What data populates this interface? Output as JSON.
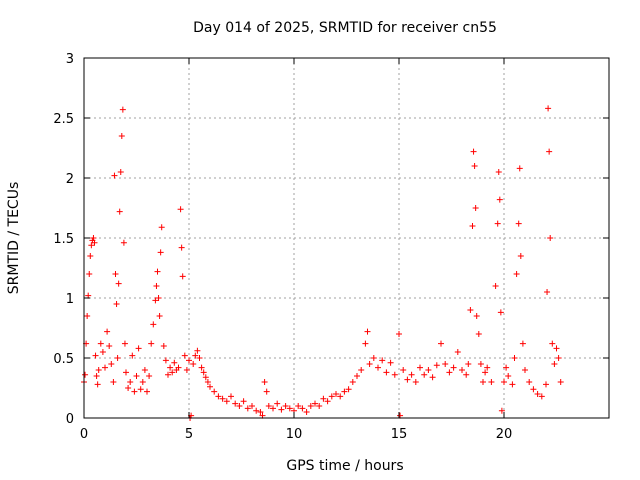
{
  "chart_data": {
    "type": "scatter",
    "title": "Day 014 of 2025, SRMTID for receiver cn55",
    "xlabel": "GPS time / hours",
    "ylabel": "SRMTID / TECUs",
    "xlim": [
      0,
      25
    ],
    "ylim": [
      0,
      3
    ],
    "xticks": [
      0,
      5,
      10,
      15,
      20
    ],
    "yticks": [
      0,
      0.5,
      1,
      1.5,
      2,
      2.5,
      3
    ],
    "xtick_labels": [
      "0",
      "5",
      "10",
      "15",
      "20"
    ],
    "ytick_labels": [
      "0",
      "0.5",
      "1",
      "1.5",
      "2",
      "2.5",
      "3"
    ],
    "grid": true,
    "marker": "plus",
    "color": "#ff0000",
    "series": [
      {
        "name": "SRMTID",
        "points": [
          [
            0.0,
            0.3
          ],
          [
            0.05,
            0.36
          ],
          [
            0.1,
            0.62
          ],
          [
            0.15,
            0.85
          ],
          [
            0.2,
            1.02
          ],
          [
            0.25,
            1.2
          ],
          [
            0.3,
            1.35
          ],
          [
            0.35,
            1.44
          ],
          [
            0.4,
            1.48
          ],
          [
            0.45,
            1.5
          ],
          [
            0.5,
            1.46
          ],
          [
            0.55,
            0.52
          ],
          [
            0.6,
            0.35
          ],
          [
            0.65,
            0.28
          ],
          [
            0.7,
            0.4
          ],
          [
            0.8,
            0.62
          ],
          [
            0.9,
            0.55
          ],
          [
            1.0,
            0.42
          ],
          [
            1.1,
            0.72
          ],
          [
            1.2,
            0.6
          ],
          [
            1.3,
            0.45
          ],
          [
            1.4,
            0.3
          ],
          [
            1.45,
            2.02
          ],
          [
            1.5,
            1.2
          ],
          [
            1.55,
            0.95
          ],
          [
            1.6,
            0.5
          ],
          [
            1.65,
            1.12
          ],
          [
            1.7,
            1.72
          ],
          [
            1.75,
            2.05
          ],
          [
            1.8,
            2.35
          ],
          [
            1.85,
            2.57
          ],
          [
            1.9,
            1.46
          ],
          [
            1.95,
            0.62
          ],
          [
            2.0,
            0.38
          ],
          [
            2.1,
            0.25
          ],
          [
            2.2,
            0.3
          ],
          [
            2.3,
            0.52
          ],
          [
            2.4,
            0.22
          ],
          [
            2.5,
            0.35
          ],
          [
            2.6,
            0.58
          ],
          [
            2.7,
            0.24
          ],
          [
            2.8,
            0.3
          ],
          [
            2.9,
            0.4
          ],
          [
            3.0,
            0.22
          ],
          [
            3.1,
            0.35
          ],
          [
            3.2,
            0.62
          ],
          [
            3.3,
            0.78
          ],
          [
            3.4,
            0.98
          ],
          [
            3.45,
            1.1
          ],
          [
            3.5,
            1.22
          ],
          [
            3.55,
            1.0
          ],
          [
            3.6,
            0.85
          ],
          [
            3.65,
            1.38
          ],
          [
            3.7,
            1.59
          ],
          [
            3.8,
            0.6
          ],
          [
            3.9,
            0.48
          ],
          [
            4.0,
            0.36
          ],
          [
            4.1,
            0.42
          ],
          [
            4.2,
            0.38
          ],
          [
            4.3,
            0.46
          ],
          [
            4.4,
            0.4
          ],
          [
            4.5,
            0.42
          ],
          [
            4.6,
            1.74
          ],
          [
            4.65,
            1.42
          ],
          [
            4.7,
            1.18
          ],
          [
            4.8,
            0.52
          ],
          [
            4.9,
            0.4
          ],
          [
            5.0,
            0.48
          ],
          [
            5.05,
            0.0
          ],
          [
            5.1,
            0.02
          ],
          [
            5.2,
            0.45
          ],
          [
            5.3,
            0.52
          ],
          [
            5.4,
            0.56
          ],
          [
            5.5,
            0.5
          ],
          [
            5.6,
            0.42
          ],
          [
            5.7,
            0.38
          ],
          [
            5.8,
            0.34
          ],
          [
            5.9,
            0.3
          ],
          [
            6.0,
            0.26
          ],
          [
            6.2,
            0.22
          ],
          [
            6.4,
            0.18
          ],
          [
            6.6,
            0.16
          ],
          [
            6.8,
            0.14
          ],
          [
            7.0,
            0.18
          ],
          [
            7.2,
            0.12
          ],
          [
            7.4,
            0.1
          ],
          [
            7.6,
            0.14
          ],
          [
            7.8,
            0.08
          ],
          [
            8.0,
            0.1
          ],
          [
            8.2,
            0.06
          ],
          [
            8.4,
            0.05
          ],
          [
            8.5,
            0.02
          ],
          [
            8.6,
            0.3
          ],
          [
            8.7,
            0.22
          ],
          [
            8.8,
            0.1
          ],
          [
            9.0,
            0.08
          ],
          [
            9.2,
            0.12
          ],
          [
            9.4,
            0.07
          ],
          [
            9.6,
            0.1
          ],
          [
            9.8,
            0.08
          ],
          [
            10.0,
            0.06
          ],
          [
            10.2,
            0.1
          ],
          [
            10.4,
            0.08
          ],
          [
            10.6,
            0.05
          ],
          [
            10.8,
            0.1
          ],
          [
            11.0,
            0.12
          ],
          [
            11.2,
            0.1
          ],
          [
            11.4,
            0.16
          ],
          [
            11.6,
            0.14
          ],
          [
            11.8,
            0.18
          ],
          [
            12.0,
            0.2
          ],
          [
            12.2,
            0.18
          ],
          [
            12.4,
            0.22
          ],
          [
            12.6,
            0.24
          ],
          [
            12.8,
            0.3
          ],
          [
            13.0,
            0.35
          ],
          [
            13.2,
            0.4
          ],
          [
            13.4,
            0.62
          ],
          [
            13.5,
            0.72
          ],
          [
            13.6,
            0.45
          ],
          [
            13.8,
            0.5
          ],
          [
            14.0,
            0.42
          ],
          [
            14.2,
            0.48
          ],
          [
            14.4,
            0.38
          ],
          [
            14.6,
            0.46
          ],
          [
            14.8,
            0.36
          ],
          [
            15.0,
            0.7
          ],
          [
            15.05,
            0.02
          ],
          [
            15.2,
            0.4
          ],
          [
            15.4,
            0.32
          ],
          [
            15.6,
            0.36
          ],
          [
            15.8,
            0.3
          ],
          [
            16.0,
            0.42
          ],
          [
            16.2,
            0.36
          ],
          [
            16.4,
            0.4
          ],
          [
            16.6,
            0.34
          ],
          [
            16.8,
            0.44
          ],
          [
            17.0,
            0.62
          ],
          [
            17.2,
            0.45
          ],
          [
            17.4,
            0.38
          ],
          [
            17.6,
            0.42
          ],
          [
            17.8,
            0.55
          ],
          [
            18.0,
            0.4
          ],
          [
            18.2,
            0.36
          ],
          [
            18.3,
            0.45
          ],
          [
            18.4,
            0.9
          ],
          [
            18.5,
            1.6
          ],
          [
            18.55,
            2.22
          ],
          [
            18.6,
            2.1
          ],
          [
            18.65,
            1.75
          ],
          [
            18.7,
            0.85
          ],
          [
            18.8,
            0.7
          ],
          [
            18.9,
            0.45
          ],
          [
            19.0,
            0.3
          ],
          [
            19.1,
            0.38
          ],
          [
            19.2,
            0.42
          ],
          [
            19.4,
            0.3
          ],
          [
            19.6,
            1.1
          ],
          [
            19.7,
            1.62
          ],
          [
            19.75,
            2.05
          ],
          [
            19.8,
            1.82
          ],
          [
            19.85,
            0.88
          ],
          [
            19.9,
            0.06
          ],
          [
            20.0,
            0.3
          ],
          [
            20.1,
            0.42
          ],
          [
            20.2,
            0.35
          ],
          [
            20.4,
            0.28
          ],
          [
            20.5,
            0.5
          ],
          [
            20.6,
            1.2
          ],
          [
            20.7,
            1.62
          ],
          [
            20.75,
            2.08
          ],
          [
            20.8,
            1.35
          ],
          [
            20.9,
            0.62
          ],
          [
            21.0,
            0.4
          ],
          [
            21.2,
            0.3
          ],
          [
            21.4,
            0.24
          ],
          [
            21.6,
            0.2
          ],
          [
            21.8,
            0.18
          ],
          [
            22.0,
            0.28
          ],
          [
            22.05,
            1.05
          ],
          [
            22.1,
            2.58
          ],
          [
            22.15,
            2.22
          ],
          [
            22.2,
            1.5
          ],
          [
            22.3,
            0.62
          ],
          [
            22.4,
            0.45
          ],
          [
            22.5,
            0.58
          ],
          [
            22.6,
            0.5
          ],
          [
            22.7,
            0.3
          ]
        ]
      }
    ]
  }
}
